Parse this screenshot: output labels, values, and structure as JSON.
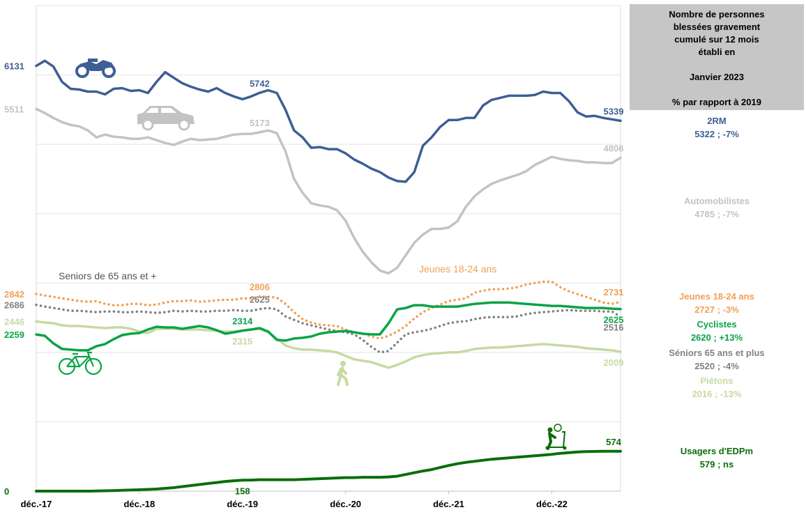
{
  "chart_data": {
    "type": "line",
    "x_ticks": [
      "déc.-17",
      "déc.-18",
      "déc.-19",
      "déc.-20",
      "déc.-21",
      "déc.-22"
    ],
    "ylim": [
      0,
      7000
    ],
    "grid": true,
    "info_box": {
      "title_lines": [
        "Nombre de personnes",
        "blessées gravement",
        "cumulé sur 12 mois",
        "établi en"
      ],
      "period": "Janvier 2023",
      "comparison": "% par rapport à 2019"
    },
    "series": [
      {
        "name": "2RM",
        "legend_value": "5322 ; -7%",
        "color": "#3d5f93",
        "style": "solid",
        "width": 3.5,
        "values": [
          6131,
          6205,
          6120,
          5900,
          5800,
          5790,
          5760,
          5760,
          5720,
          5800,
          5810,
          5770,
          5780,
          5740,
          5900,
          6040,
          5960,
          5880,
          5830,
          5790,
          5760,
          5810,
          5740,
          5690,
          5650,
          5690,
          5742,
          5780,
          5740,
          5500,
          5200,
          5100,
          4950,
          4960,
          4930,
          4930,
          4870,
          4780,
          4720,
          4650,
          4600,
          4520,
          4470,
          4460,
          4600,
          4980,
          5100,
          5250,
          5350,
          5350,
          5380,
          5380,
          5560,
          5640,
          5670,
          5700,
          5700,
          5700,
          5710,
          5760,
          5740,
          5740,
          5620,
          5460,
          5400,
          5410,
          5380,
          5360,
          5339
        ],
        "labels": [
          {
            "i": 0,
            "text": "6131",
            "pos": "left"
          },
          {
            "i": 26,
            "text": "5742",
            "pos": "above"
          },
          {
            "i": 68,
            "text": "5339",
            "pos": "above"
          }
        ]
      },
      {
        "name": "Automobilistes",
        "legend_value": "4785 ; -7%",
        "color": "#c3c3c3",
        "style": "solid",
        "width": 3.5,
        "values": [
          5511,
          5450,
          5380,
          5320,
          5280,
          5260,
          5200,
          5100,
          5140,
          5110,
          5100,
          5080,
          5080,
          5100,
          5060,
          5020,
          4990,
          5040,
          5080,
          5060,
          5070,
          5080,
          5110,
          5140,
          5150,
          5150,
          5173,
          5200,
          5160,
          4900,
          4500,
          4300,
          4150,
          4120,
          4100,
          4050,
          3900,
          3650,
          3450,
          3300,
          3180,
          3140,
          3220,
          3400,
          3580,
          3700,
          3780,
          3780,
          3800,
          3890,
          4100,
          4250,
          4350,
          4430,
          4480,
          4520,
          4560,
          4610,
          4700,
          4760,
          4820,
          4790,
          4770,
          4760,
          4740,
          4740,
          4730,
          4730,
          4806
        ],
        "labels": [
          {
            "i": 0,
            "text": "5511",
            "pos": "left"
          },
          {
            "i": 26,
            "text": "5173",
            "pos": "above"
          },
          {
            "i": 68,
            "text": "4806",
            "pos": "above"
          }
        ]
      },
      {
        "name": "Jeunes 18-24 ans",
        "legend_value": "2727 ; -3%",
        "color": "#f0a057",
        "style": "dotted",
        "width": 3.5,
        "values": [
          2842,
          2820,
          2800,
          2780,
          2760,
          2740,
          2730,
          2740,
          2700,
          2680,
          2680,
          2700,
          2700,
          2680,
          2690,
          2720,
          2740,
          2740,
          2750,
          2730,
          2740,
          2750,
          2760,
          2760,
          2780,
          2780,
          2806,
          2800,
          2790,
          2700,
          2580,
          2480,
          2430,
          2400,
          2390,
          2380,
          2330,
          2290,
          2270,
          2230,
          2200,
          2240,
          2300,
          2380,
          2490,
          2580,
          2640,
          2690,
          2740,
          2760,
          2780,
          2860,
          2890,
          2910,
          2910,
          2920,
          2940,
          2980,
          3000,
          3020,
          3020,
          2940,
          2880,
          2840,
          2800,
          2760,
          2720,
          2700,
          2731
        ],
        "labels": [
          {
            "i": 0,
            "text": "2842",
            "pos": "left"
          },
          {
            "i": 26,
            "text": "2806",
            "pos": "above"
          },
          {
            "i": 68,
            "text": "2731",
            "pos": "above"
          }
        ]
      },
      {
        "name": "Séniors 65 ans et plus",
        "legend_value": "2520 ; -4%",
        "color": "#818181",
        "style": "dotted",
        "width": 3.5,
        "values": [
          2686,
          2660,
          2640,
          2620,
          2600,
          2600,
          2590,
          2580,
          2590,
          2590,
          2580,
          2580,
          2590,
          2580,
          2570,
          2580,
          2600,
          2590,
          2600,
          2590,
          2590,
          2600,
          2600,
          2610,
          2600,
          2600,
          2625,
          2640,
          2620,
          2520,
          2470,
          2420,
          2390,
          2360,
          2330,
          2310,
          2290,
          2260,
          2180,
          2080,
          2000,
          2020,
          2140,
          2260,
          2290,
          2310,
          2340,
          2380,
          2420,
          2440,
          2450,
          2480,
          2500,
          2510,
          2510,
          2510,
          2520,
          2550,
          2570,
          2580,
          2590,
          2600,
          2610,
          2600,
          2600,
          2600,
          2590,
          2590,
          2516
        ],
        "labels": [
          {
            "i": 0,
            "text": "2686",
            "pos": "left"
          },
          {
            "i": 26,
            "text": "2625",
            "pos": "above"
          },
          {
            "i": 68,
            "text": "2516",
            "pos": "below"
          }
        ]
      },
      {
        "name": "Cyclistes",
        "legend_value": "2620 ; +13%",
        "color": "#0aa346",
        "style": "solid",
        "width": 3.5,
        "values": [
          2259,
          2240,
          2130,
          2050,
          2040,
          2030,
          2030,
          2090,
          2120,
          2190,
          2250,
          2270,
          2280,
          2330,
          2370,
          2360,
          2360,
          2340,
          2360,
          2380,
          2360,
          2320,
          2270,
          2290,
          2314,
          2330,
          2350,
          2300,
          2180,
          2170,
          2200,
          2210,
          2230,
          2270,
          2290,
          2300,
          2310,
          2290,
          2270,
          2260,
          2260,
          2420,
          2620,
          2640,
          2680,
          2680,
          2660,
          2660,
          2660,
          2660,
          2680,
          2700,
          2710,
          2720,
          2720,
          2720,
          2710,
          2700,
          2690,
          2680,
          2670,
          2670,
          2660,
          2650,
          2640,
          2640,
          2640,
          2630,
          2625
        ],
        "labels": [
          {
            "i": 0,
            "text": "2259",
            "pos": "left"
          },
          {
            "i": 24,
            "text": "2314",
            "pos": "above"
          },
          {
            "i": 68,
            "text": "2625",
            "pos": "below"
          }
        ]
      },
      {
        "name": "Piétons",
        "legend_value": "2016 ; -13%",
        "color": "#c6daa2",
        "style": "solid",
        "width": 3.5,
        "values": [
          2446,
          2430,
          2420,
          2390,
          2380,
          2380,
          2370,
          2360,
          2350,
          2360,
          2360,
          2340,
          2300,
          2280,
          2340,
          2340,
          2340,
          2330,
          2330,
          2330,
          2320,
          2310,
          2300,
          2300,
          2315,
          2330,
          2340,
          2290,
          2200,
          2100,
          2060,
          2040,
          2040,
          2030,
          2020,
          2000,
          1950,
          1900,
          1880,
          1860,
          1820,
          1780,
          1820,
          1870,
          1930,
          1960,
          1980,
          1990,
          2000,
          2000,
          2020,
          2050,
          2060,
          2070,
          2070,
          2080,
          2090,
          2100,
          2110,
          2120,
          2110,
          2100,
          2090,
          2080,
          2060,
          2050,
          2040,
          2030,
          2009
        ],
        "labels": [
          {
            "i": 0,
            "text": "2446",
            "pos": "left"
          },
          {
            "i": 24,
            "text": "2315",
            "pos": "below"
          },
          {
            "i": 68,
            "text": "2009",
            "pos": "below"
          }
        ]
      },
      {
        "name": "Usagers d'EDPm",
        "legend_value": "579 ; ns",
        "color": "#0a6e0a",
        "style": "solid",
        "width": 4,
        "values": [
          0,
          0,
          0,
          0,
          0,
          0,
          0,
          2,
          5,
          8,
          12,
          16,
          20,
          25,
          30,
          40,
          50,
          65,
          80,
          95,
          110,
          125,
          140,
          150,
          158,
          160,
          165,
          165,
          165,
          165,
          165,
          170,
          175,
          180,
          185,
          190,
          195,
          195,
          200,
          200,
          200,
          205,
          215,
          240,
          265,
          290,
          310,
          340,
          370,
          395,
          415,
          430,
          445,
          460,
          470,
          480,
          490,
          500,
          510,
          520,
          530,
          545,
          555,
          565,
          570,
          572,
          574,
          574,
          574
        ],
        "labels": [
          {
            "i": 0,
            "text": "0",
            "pos": "left"
          },
          {
            "i": 24,
            "text": "158",
            "pos": "below"
          },
          {
            "i": 68,
            "text": "574",
            "pos": "above"
          }
        ]
      }
    ],
    "annotations": [
      {
        "text": "Seniors de 65 ans et +",
        "color": "#555555"
      },
      {
        "text": "Jeunes 18-24 ans",
        "color": "#f0a057"
      }
    ],
    "icons": [
      {
        "name": "motorcycle-icon",
        "color": "#3d5f93"
      },
      {
        "name": "car-icon",
        "color": "#c3c3c3"
      },
      {
        "name": "bicycle-icon",
        "color": "#0aa346"
      },
      {
        "name": "pedestrian-icon",
        "color": "#c6daa2"
      },
      {
        "name": "scooter-icon",
        "color": "#0a6e0a"
      }
    ]
  }
}
